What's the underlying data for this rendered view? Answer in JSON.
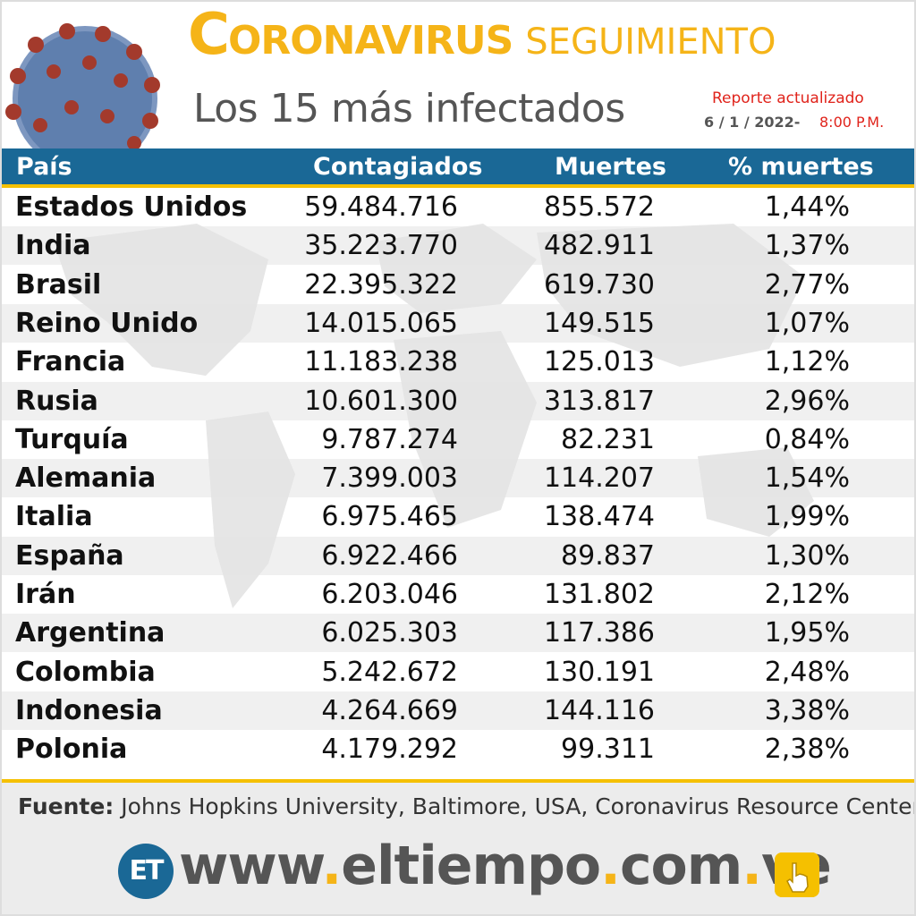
{
  "header": {
    "title_first_letter": "C",
    "title_rest": "ORONAVIRUS",
    "title_segment": "SEGUIMIENTO",
    "subtitle": "Los 15 más infectados",
    "report_label": "Reporte actualizado",
    "report_date": "6 / 1 / 2022-",
    "report_time": "8:00 P.M."
  },
  "colors": {
    "accent_yellow": "#f5b418",
    "header_blue": "#1a6896",
    "report_red": "#e0231b"
  },
  "chart_data": {
    "type": "table",
    "columns": [
      "País",
      "Contagiados",
      "Muertes",
      "% muertes"
    ],
    "rows": [
      [
        "Estados Unidos",
        "59.484.716",
        "855.572",
        "1,44%"
      ],
      [
        "India",
        "35.223.770",
        "482.911",
        "1,37%"
      ],
      [
        "Brasil",
        "22.395.322",
        "619.730",
        "2,77%"
      ],
      [
        "Reino Unido",
        "14.015.065",
        "149.515",
        "1,07%"
      ],
      [
        "Francia",
        "11.183.238",
        "125.013",
        "1,12%"
      ],
      [
        "Rusia",
        "10.601.300",
        "313.817",
        "2,96%"
      ],
      [
        "Turquía",
        "9.787.274",
        "82.231",
        "0,84%"
      ],
      [
        "Alemania",
        "7.399.003",
        "114.207",
        "1,54%"
      ],
      [
        "Italia",
        "6.975.465",
        "138.474",
        "1,99%"
      ],
      [
        "España",
        "6.922.466",
        "89.837",
        "1,30%"
      ],
      [
        "Irán",
        "6.203.046",
        "131.802",
        "2,12%"
      ],
      [
        "Argentina",
        "6.025.303",
        "117.386",
        "1,95%"
      ],
      [
        "Colombia",
        "5.242.672",
        "130.191",
        "2,48%"
      ],
      [
        "Indonesia",
        "4.264.669",
        "144.116",
        "3,38%"
      ],
      [
        "Polonia",
        "4.179.292",
        "99.311",
        "2,38%"
      ]
    ]
  },
  "footer": {
    "source_label": "Fuente:",
    "source_text": "Johns Hopkins University, Baltimore, USA, Coronavirus Resource Center",
    "logo_text": "ET",
    "site_parts": [
      "www",
      ".",
      "eltiempo",
      ".",
      "com",
      ".",
      "ve"
    ]
  }
}
